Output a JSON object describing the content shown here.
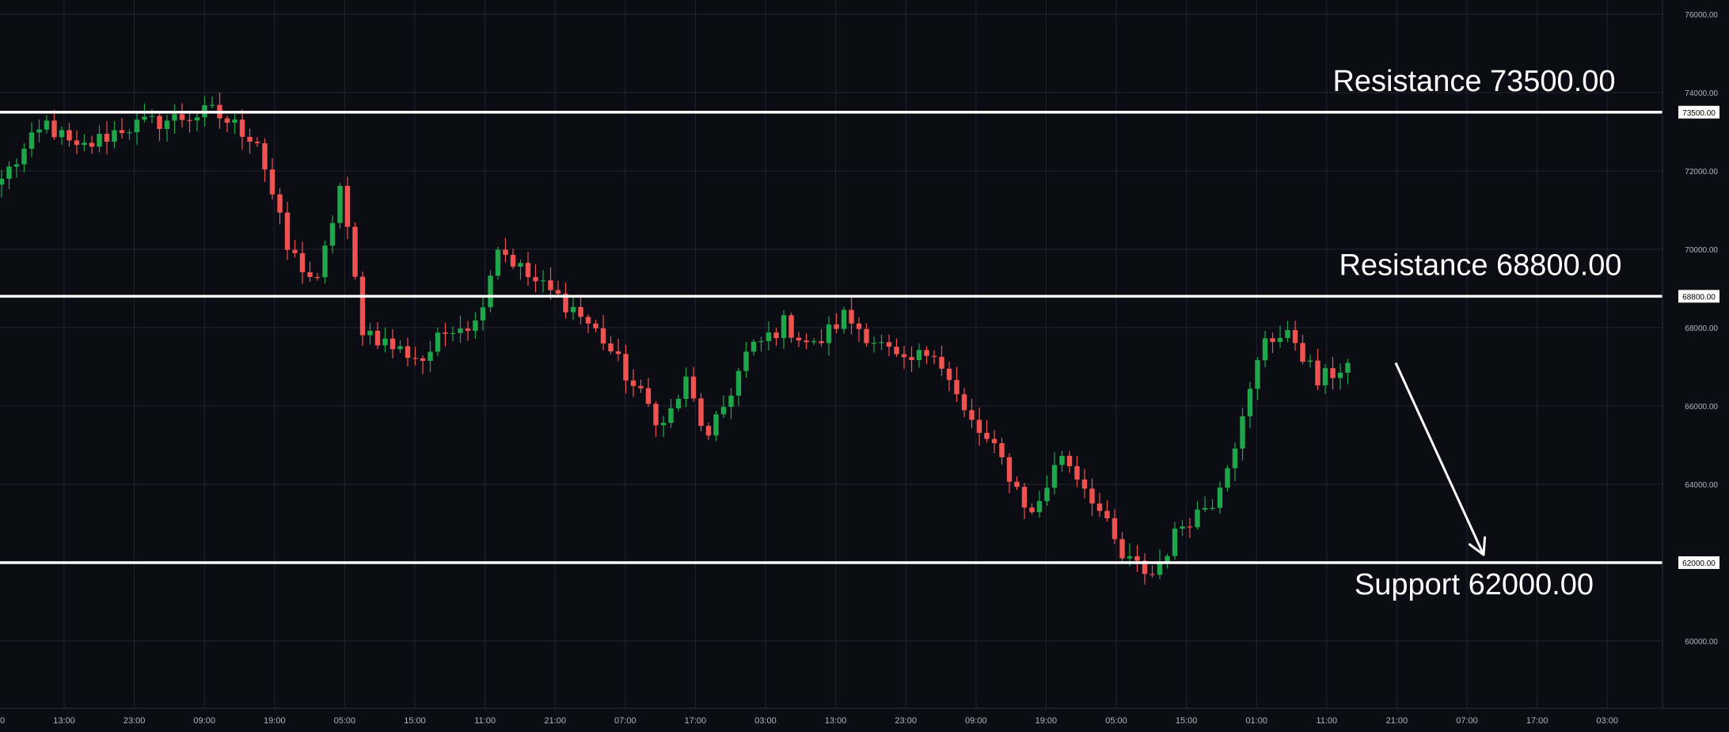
{
  "chart_data": {
    "type": "candlestick",
    "title": "",
    "xlabel": "",
    "ylabel": "",
    "ylim": [
      58300,
      76300
    ],
    "y_ticks": [
      "76000.00",
      "74000.00",
      "72000.00",
      "70000.00",
      "68000.00",
      "66000.00",
      "64000.00",
      "62000.00",
      "60000.00"
    ],
    "x_ticks": [
      "13:00",
      "23:00",
      "09:00",
      "19:00",
      "05:00",
      "15:00",
      "11:00",
      "21:00",
      "07:00",
      "17:00",
      "03:00",
      "13:00",
      "23:00",
      "09:00",
      "19:00",
      "05:00",
      "15:00",
      "01:00",
      "11:00",
      "21:00",
      "07:00",
      "17:00",
      "03:00"
    ],
    "x_left_partial": "0",
    "grid": true,
    "colors": {
      "background": "#0c0c14",
      "up": "#1fa64a",
      "down": "#ef5350",
      "grid": "#23232f",
      "level": "#ffffff",
      "text": "#ffffff",
      "axis_text": "#b2b5be"
    },
    "levels": [
      {
        "name": "Resistance",
        "value": 73500,
        "label": "Resistance 73500.00",
        "axis_label": "73500.00"
      },
      {
        "name": "Resistance",
        "value": 68800,
        "label": "Resistance 68800.00",
        "axis_label": "68800.00"
      },
      {
        "name": "Support",
        "value": 62000,
        "label": "Support 62000.00",
        "axis_label": "62000.00"
      }
    ],
    "projection": {
      "from": 67100,
      "to": 62200
    },
    "anchors": [
      {
        "i": 0,
        "p": 71800
      },
      {
        "i": 6,
        "p": 73200
      },
      {
        "i": 10,
        "p": 72500
      },
      {
        "i": 16,
        "p": 73100
      },
      {
        "i": 28,
        "p": 73500
      },
      {
        "i": 34,
        "p": 72800
      },
      {
        "i": 38,
        "p": 70000
      },
      {
        "i": 42,
        "p": 69100
      },
      {
        "i": 45,
        "p": 71600
      },
      {
        "i": 48,
        "p": 68000
      },
      {
        "i": 52,
        "p": 67500
      },
      {
        "i": 56,
        "p": 67200
      },
      {
        "i": 60,
        "p": 68100
      },
      {
        "i": 63,
        "p": 68100
      },
      {
        "i": 66,
        "p": 70100
      },
      {
        "i": 70,
        "p": 69300
      },
      {
        "i": 76,
        "p": 68500
      },
      {
        "i": 80,
        "p": 67700
      },
      {
        "i": 84,
        "p": 66500
      },
      {
        "i": 88,
        "p": 65500
      },
      {
        "i": 91,
        "p": 66600
      },
      {
        "i": 94,
        "p": 65100
      },
      {
        "i": 99,
        "p": 67300
      },
      {
        "i": 104,
        "p": 68100
      },
      {
        "i": 108,
        "p": 67500
      },
      {
        "i": 112,
        "p": 68300
      },
      {
        "i": 116,
        "p": 67700
      },
      {
        "i": 120,
        "p": 67000
      },
      {
        "i": 124,
        "p": 67500
      },
      {
        "i": 128,
        "p": 65800
      },
      {
        "i": 133,
        "p": 64600
      },
      {
        "i": 137,
        "p": 63200
      },
      {
        "i": 141,
        "p": 64800
      },
      {
        "i": 145,
        "p": 63700
      },
      {
        "i": 149,
        "p": 62100
      },
      {
        "i": 153,
        "p": 61700
      },
      {
        "i": 157,
        "p": 63000
      },
      {
        "i": 161,
        "p": 63600
      },
      {
        "i": 165,
        "p": 65600
      },
      {
        "i": 168,
        "p": 67800
      },
      {
        "i": 172,
        "p": 67700
      },
      {
        "i": 175,
        "p": 66600
      },
      {
        "i": 179,
        "p": 67100
      }
    ]
  }
}
